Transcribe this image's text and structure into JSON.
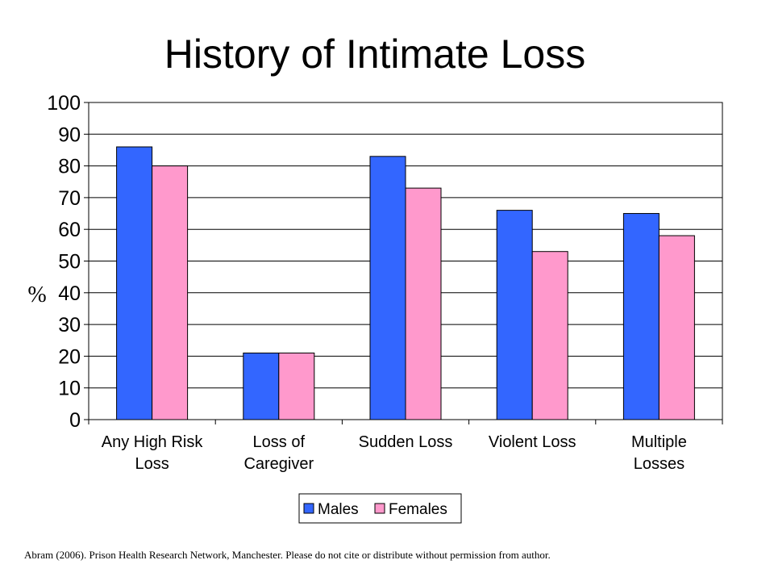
{
  "title": "History of Intimate Loss",
  "footer": "Abram (2006). Prison Health Research Network, Manchester.  Please do not cite or distribute without permission  from author.",
  "chart_data": {
    "type": "bar",
    "categories": [
      [
        "Any High Risk",
        "Loss"
      ],
      [
        "Loss of",
        "Caregiver"
      ],
      [
        "Sudden Loss"
      ],
      [
        "Violent Loss"
      ],
      [
        "Multiple",
        "Losses"
      ]
    ],
    "series": [
      {
        "name": "Males",
        "color": "#3366ff",
        "values": [
          86,
          21,
          83,
          66,
          65
        ]
      },
      {
        "name": "Females",
        "color": "#ff99cc",
        "values": [
          80,
          21,
          73,
          53,
          58
        ]
      }
    ],
    "ylabel": "%",
    "ylim": [
      0,
      100
    ],
    "yticks": [
      0,
      10,
      20,
      30,
      40,
      50,
      60,
      70,
      80,
      90,
      100
    ],
    "grid": true,
    "legend": "bottom-center"
  }
}
